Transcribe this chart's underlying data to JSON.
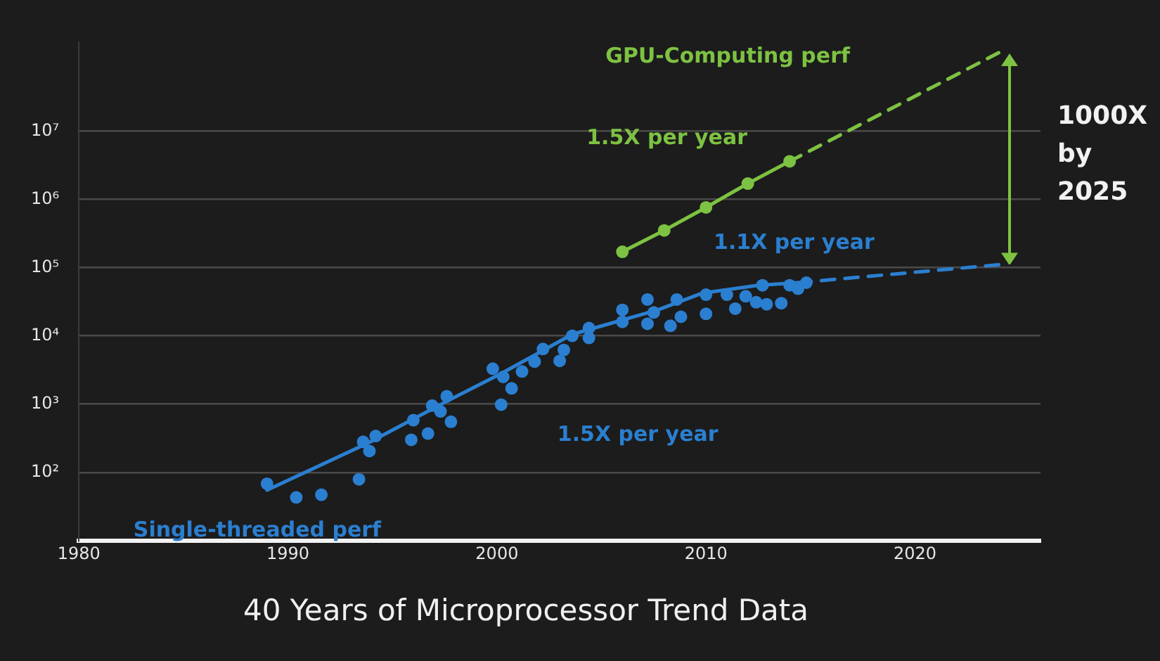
{
  "chart_data": {
    "type": "scatter",
    "title": "40 Years of Microprocessor Trend Data",
    "xlim": [
      1980,
      2026
    ],
    "xticks": [
      1980,
      1990,
      2000,
      2010,
      2020
    ],
    "ylim": [
      10,
      200000000
    ],
    "yticks": [
      {
        "value": 100,
        "label": "10²"
      },
      {
        "value": 1000,
        "label": "10³"
      },
      {
        "value": 10000,
        "label": "10⁴"
      },
      {
        "value": 100000,
        "label": "10⁵"
      },
      {
        "value": 1000000,
        "label": "10⁶"
      },
      {
        "value": 10000000,
        "label": "10⁷"
      }
    ],
    "log": "y",
    "grid": "y",
    "legend": false,
    "series": [
      {
        "name": "Single-threaded perf",
        "color": "#2b7fd0",
        "marker": "circle",
        "x": [
          1989.0,
          1990.4,
          1991.6,
          1993.4,
          1993.6,
          1993.9,
          1994.2,
          1995.9,
          1996.0,
          1996.7,
          1996.9,
          1997.3,
          1997.8,
          1997.6,
          1999.8,
          2000.2,
          2000.3,
          2000.7,
          2001.2,
          2001.8,
          2002.2,
          2003.0,
          2003.2,
          2003.6,
          2004.4,
          2004.4,
          2006.0,
          2006.0,
          2007.2,
          2007.2,
          2007.5,
          2008.3,
          2008.8,
          2008.6,
          2010.0,
          2010.0,
          2011.0,
          2011.4,
          2011.9,
          2012.4,
          2012.7,
          2012.9,
          2013.6,
          2014.0,
          2014.4,
          2014.8
        ],
        "values": [
          68,
          43,
          47,
          79,
          280,
          205,
          340,
          300,
          580,
          370,
          950,
          780,
          550,
          1300,
          3300,
          980,
          2500,
          1700,
          3000,
          4200,
          6400,
          4300,
          6200,
          10000,
          13000,
          9300,
          24000,
          16000,
          34000,
          15000,
          22000,
          14000,
          19000,
          34000,
          40000,
          21000,
          40000,
          25000,
          38000,
          31000,
          55000,
          29000,
          30000,
          55000,
          49000,
          60000
        ]
      },
      {
        "type": "line",
        "color": "#2b7fd0",
        "marker": "none",
        "line_style": "solid",
        "x": [
          1989.0,
          1993.9,
          1997.6,
          2000.2,
          2003.6,
          2007.7,
          2009.8,
          2012.5,
          2014.4
        ],
        "values": [
          55,
          275,
          1100,
          2800,
          10500,
          24000,
          42000,
          55000,
          60000
        ]
      },
      {
        "type": "line",
        "color": "#2b7fd0",
        "marker": "none",
        "line_style": "dashed",
        "x": [
          2014.4,
          2024
        ],
        "values": [
          60000,
          110000
        ]
      },
      {
        "type": "line",
        "name": "GPU-Computing perf",
        "color": "#7dc242",
        "marker": "circle",
        "line_style": "solid",
        "x": [
          2006,
          2008,
          2010,
          2012,
          2014
        ],
        "values": [
          170000,
          350000,
          760000,
          1700000,
          3600000
        ]
      },
      {
        "type": "line",
        "color": "#7dc242",
        "marker": "none",
        "line_style": "dashed",
        "x": [
          2014,
          2024
        ],
        "values": [
          3600000,
          140000000
        ]
      }
    ],
    "annotations": [
      {
        "text": "1.5X per year",
        "x": 2010,
        "y": 760000
      },
      {
        "text": "1.5X per year",
        "x": 2000.2,
        "y": 980
      },
      {
        "text": "1.1X per year",
        "x": 2014.4,
        "y": 60000
      },
      "1000X by 2025"
    ]
  }
}
